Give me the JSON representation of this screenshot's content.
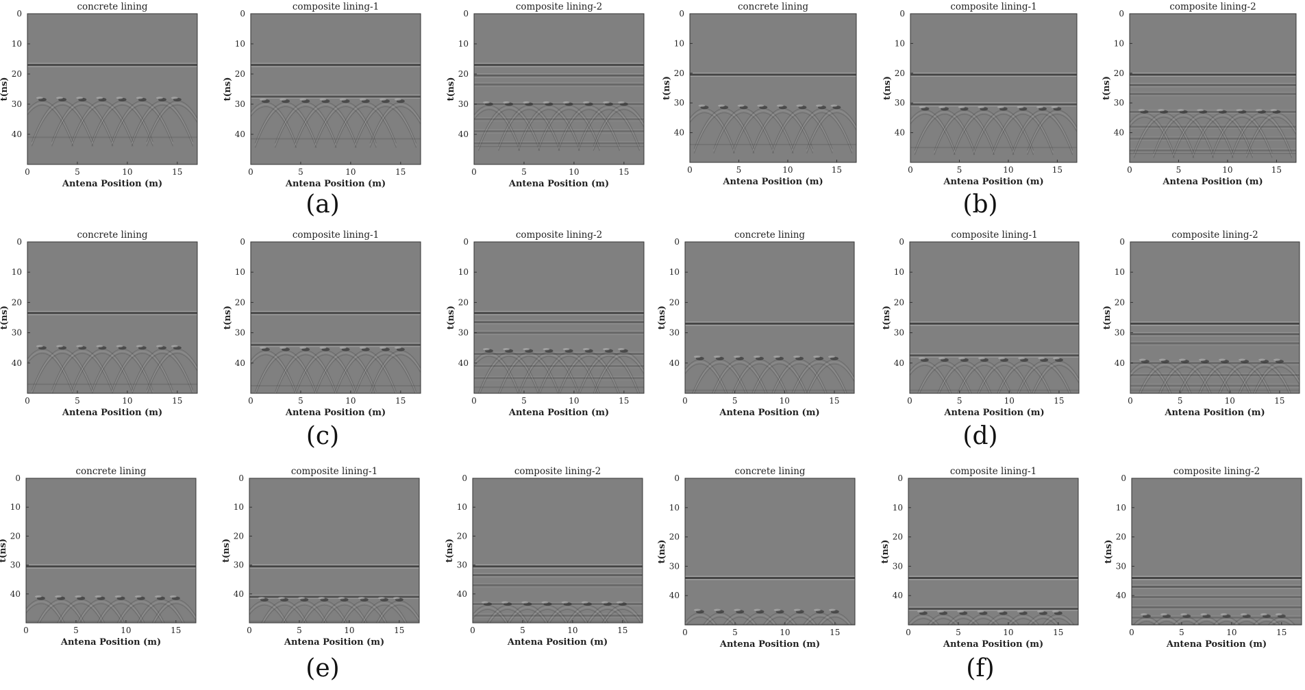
{
  "chart_data": [
    {
      "group": "a",
      "index": 0,
      "type": "heatmap",
      "title": "concrete lining",
      "xlabel": "Antena Position (m)",
      "ylabel": "t(ns)",
      "xlim": [
        0,
        17
      ],
      "ylim": [
        50,
        0
      ],
      "xticks": [
        0,
        5,
        10,
        15
      ],
      "yticks": [
        0,
        10,
        20,
        30,
        40
      ],
      "reflections": [
        {
          "t": 17,
          "strength": 1.0
        }
      ],
      "hyperbola_t": 28.5,
      "hyperbola_x": [
        1.5,
        3.5,
        5.5,
        7.5,
        9.5,
        11.5,
        13.5,
        15.0
      ],
      "secondary_t": 41
    },
    {
      "group": "a",
      "index": 1,
      "type": "heatmap",
      "title": "composite lining-1",
      "xlabel": "Antena Position (m)",
      "ylabel": "t(ns)",
      "xlim": [
        0,
        17
      ],
      "ylim": [
        50,
        0
      ],
      "xticks": [
        0,
        5,
        10,
        15
      ],
      "yticks": [
        0,
        10,
        20,
        30,
        40
      ],
      "reflections": [
        {
          "t": 17,
          "strength": 1.0
        },
        {
          "t": 27.5,
          "strength": 0.8
        }
      ],
      "hyperbola_t": 29,
      "hyperbola_x": [
        1.5,
        3.5,
        5.5,
        7.5,
        9.5,
        11.5,
        13.5,
        15.0
      ],
      "secondary_t": 41.5
    },
    {
      "group": "a",
      "index": 2,
      "type": "heatmap",
      "title": "composite lining-2",
      "xlabel": "Antena Position (m)",
      "ylabel": "t(ns)",
      "xlim": [
        0,
        17
      ],
      "ylim": [
        50,
        0
      ],
      "xticks": [
        0,
        5,
        10,
        15
      ],
      "yticks": [
        0,
        10,
        20,
        30,
        40
      ],
      "reflections": [
        {
          "t": 17,
          "strength": 1.0
        },
        {
          "t": 20.5,
          "strength": 0.6
        },
        {
          "t": 23.5,
          "strength": 0.4
        },
        {
          "t": 30,
          "strength": 0.4
        },
        {
          "t": 35,
          "strength": 0.3
        },
        {
          "t": 39,
          "strength": 0.3
        },
        {
          "t": 43,
          "strength": 0.3
        }
      ],
      "hyperbola_t": 30,
      "hyperbola_x": [
        1.5,
        3.5,
        5.5,
        7.5,
        9.5,
        11.5,
        13.5,
        15.0
      ],
      "secondary_t": 44
    },
    {
      "group": "b",
      "index": 0,
      "type": "heatmap",
      "title": "concrete lining",
      "xlabel": "Antena Position (m)",
      "ylabel": "t(ns)",
      "xlim": [
        0,
        17
      ],
      "ylim": [
        50,
        0
      ],
      "xticks": [
        0,
        5,
        10,
        15
      ],
      "yticks": [
        0,
        10,
        20,
        30,
        40
      ],
      "reflections": [
        {
          "t": 20.5,
          "strength": 1.0
        }
      ],
      "hyperbola_t": 31.5,
      "hyperbola_x": [
        1.5,
        3.5,
        5.5,
        7.5,
        9.5,
        11.5,
        13.5,
        15.0
      ],
      "secondary_t": 44
    },
    {
      "group": "b",
      "index": 1,
      "type": "heatmap",
      "title": "composite lining-1",
      "xlabel": "Antena Position (m)",
      "ylabel": "t(ns)",
      "xlim": [
        0,
        17
      ],
      "ylim": [
        50,
        0
      ],
      "xticks": [
        0,
        5,
        10,
        15
      ],
      "yticks": [
        0,
        10,
        20,
        30,
        40
      ],
      "reflections": [
        {
          "t": 20.5,
          "strength": 1.0
        },
        {
          "t": 30.5,
          "strength": 0.8
        }
      ],
      "hyperbola_t": 32,
      "hyperbola_x": [
        1.5,
        3.5,
        5.5,
        7.5,
        9.5,
        11.5,
        13.5,
        15.0
      ],
      "secondary_t": 45
    },
    {
      "group": "b",
      "index": 2,
      "type": "heatmap",
      "title": "composite lining-2",
      "xlabel": "Antena Position (m)",
      "ylabel": "t(ns)",
      "xlim": [
        0,
        17
      ],
      "ylim": [
        50,
        0
      ],
      "xticks": [
        0,
        5,
        10,
        15
      ],
      "yticks": [
        0,
        10,
        20,
        30,
        40
      ],
      "reflections": [
        {
          "t": 20.5,
          "strength": 1.0
        },
        {
          "t": 24,
          "strength": 0.6
        },
        {
          "t": 27,
          "strength": 0.4
        },
        {
          "t": 33,
          "strength": 0.4
        },
        {
          "t": 38,
          "strength": 0.3
        },
        {
          "t": 42,
          "strength": 0.3
        },
        {
          "t": 46,
          "strength": 0.3
        }
      ],
      "hyperbola_t": 33,
      "hyperbola_x": [
        1.5,
        3.5,
        5.5,
        7.5,
        9.5,
        11.5,
        13.5,
        15.0
      ],
      "secondary_t": 47
    },
    {
      "group": "c",
      "index": 0,
      "type": "heatmap",
      "title": "concrete lining",
      "xlabel": "Antena Position (m)",
      "ylabel": "t(ns)",
      "xlim": [
        0,
        17
      ],
      "ylim": [
        50,
        0
      ],
      "xticks": [
        0,
        5,
        10,
        15
      ],
      "yticks": [
        0,
        10,
        20,
        30,
        40
      ],
      "reflections": [
        {
          "t": 23.5,
          "strength": 1.0
        }
      ],
      "hyperbola_t": 35,
      "hyperbola_x": [
        1.5,
        3.5,
        5.5,
        7.5,
        9.5,
        11.5,
        13.5,
        15.0
      ],
      "secondary_t": 47
    },
    {
      "group": "c",
      "index": 1,
      "type": "heatmap",
      "title": "composite lining-1",
      "xlabel": "Antena Position (m)",
      "ylabel": "t(ns)",
      "xlim": [
        0,
        17
      ],
      "ylim": [
        50,
        0
      ],
      "xticks": [
        0,
        5,
        10,
        15
      ],
      "yticks": [
        0,
        10,
        20,
        30,
        40
      ],
      "reflections": [
        {
          "t": 23.5,
          "strength": 1.0
        },
        {
          "t": 34,
          "strength": 0.8
        }
      ],
      "hyperbola_t": 35.5,
      "hyperbola_x": [
        1.5,
        3.5,
        5.5,
        7.5,
        9.5,
        11.5,
        13.5,
        15.0
      ],
      "secondary_t": 47.5
    },
    {
      "group": "c",
      "index": 2,
      "type": "heatmap",
      "title": "composite lining-2",
      "xlabel": "Antena Position (m)",
      "ylabel": "t(ns)",
      "xlim": [
        0,
        17
      ],
      "ylim": [
        50,
        0
      ],
      "xticks": [
        0,
        5,
        10,
        15
      ],
      "yticks": [
        0,
        10,
        20,
        30,
        40
      ],
      "reflections": [
        {
          "t": 23.5,
          "strength": 1.0
        },
        {
          "t": 26.5,
          "strength": 0.6
        },
        {
          "t": 30,
          "strength": 0.4
        },
        {
          "t": 37,
          "strength": 0.4
        },
        {
          "t": 41,
          "strength": 0.3
        },
        {
          "t": 45,
          "strength": 0.3
        }
      ],
      "hyperbola_t": 36,
      "hyperbola_x": [
        1.5,
        3.5,
        5.5,
        7.5,
        9.5,
        11.5,
        13.5,
        15.0
      ],
      "secondary_t": 48
    },
    {
      "group": "d",
      "index": 0,
      "type": "heatmap",
      "title": "concrete lining",
      "xlabel": "Antena Position (m)",
      "ylabel": "t(ns)",
      "xlim": [
        0,
        17
      ],
      "ylim": [
        50,
        0
      ],
      "xticks": [
        0,
        5,
        10,
        15
      ],
      "yticks": [
        0,
        10,
        20,
        30,
        40
      ],
      "reflections": [
        {
          "t": 27,
          "strength": 1.0
        }
      ],
      "hyperbola_t": 38.5,
      "hyperbola_x": [
        1.5,
        3.5,
        5.5,
        7.5,
        9.5,
        11.5,
        13.5,
        15.0
      ],
      "secondary_t": 49
    },
    {
      "group": "d",
      "index": 1,
      "type": "heatmap",
      "title": "composite lining-1",
      "xlabel": "Antena Position (m)",
      "ylabel": "t(ns)",
      "xlim": [
        0,
        17
      ],
      "ylim": [
        50,
        0
      ],
      "xticks": [
        0,
        5,
        10,
        15
      ],
      "yticks": [
        0,
        10,
        20,
        30,
        40
      ],
      "reflections": [
        {
          "t": 27,
          "strength": 1.0
        },
        {
          "t": 37.5,
          "strength": 0.8
        }
      ],
      "hyperbola_t": 39,
      "hyperbola_x": [
        1.5,
        3.5,
        5.5,
        7.5,
        9.5,
        11.5,
        13.5,
        15.0
      ],
      "secondary_t": 49
    },
    {
      "group": "d",
      "index": 2,
      "type": "heatmap",
      "title": "composite lining-2",
      "xlabel": "Antena Position (m)",
      "ylabel": "t(ns)",
      "xlim": [
        0,
        17
      ],
      "ylim": [
        50,
        0
      ],
      "xticks": [
        0,
        5,
        10,
        15
      ],
      "yticks": [
        0,
        10,
        20,
        30,
        40
      ],
      "reflections": [
        {
          "t": 27,
          "strength": 1.0
        },
        {
          "t": 30.5,
          "strength": 0.6
        },
        {
          "t": 33.5,
          "strength": 0.4
        },
        {
          "t": 40,
          "strength": 0.4
        },
        {
          "t": 44,
          "strength": 0.3
        },
        {
          "t": 47.5,
          "strength": 0.3
        }
      ],
      "hyperbola_t": 39.5,
      "hyperbola_x": [
        1.5,
        3.5,
        5.5,
        7.5,
        9.5,
        11.5,
        13.5,
        15.0
      ],
      "secondary_t": 49
    },
    {
      "group": "e",
      "index": 0,
      "type": "heatmap",
      "title": "concrete lining",
      "xlabel": "Antena Position (m)",
      "ylabel": "t(ns)",
      "xlim": [
        0,
        17
      ],
      "ylim": [
        50,
        0
      ],
      "xticks": [
        0,
        5,
        10,
        15
      ],
      "yticks": [
        0,
        10,
        20,
        30,
        40
      ],
      "reflections": [
        {
          "t": 30.5,
          "strength": 1.0
        }
      ],
      "hyperbola_t": 41.5,
      "hyperbola_x": [
        1.5,
        3.5,
        5.5,
        7.5,
        9.5,
        11.5,
        13.5,
        15.0
      ],
      "secondary_t": 49.5
    },
    {
      "group": "e",
      "index": 1,
      "type": "heatmap",
      "title": "composite lining-1",
      "xlabel": "Antena Position (m)",
      "ylabel": "t(ns)",
      "xlim": [
        0,
        17
      ],
      "ylim": [
        50,
        0
      ],
      "xticks": [
        0,
        5,
        10,
        15
      ],
      "yticks": [
        0,
        10,
        20,
        30,
        40
      ],
      "reflections": [
        {
          "t": 30.5,
          "strength": 1.0
        },
        {
          "t": 41,
          "strength": 0.8
        }
      ],
      "hyperbola_t": 42,
      "hyperbola_x": [
        1.5,
        3.5,
        5.5,
        7.5,
        9.5,
        11.5,
        13.5,
        15.0
      ],
      "secondary_t": 49.5
    },
    {
      "group": "e",
      "index": 2,
      "type": "heatmap",
      "title": "composite lining-2",
      "xlabel": "Antena Position (m)",
      "ylabel": "t(ns)",
      "xlim": [
        0,
        17
      ],
      "ylim": [
        50,
        0
      ],
      "xticks": [
        0,
        5,
        10,
        15
      ],
      "yticks": [
        0,
        10,
        20,
        30,
        40
      ],
      "reflections": [
        {
          "t": 30.5,
          "strength": 1.0
        },
        {
          "t": 33.5,
          "strength": 0.6
        },
        {
          "t": 37,
          "strength": 0.4
        },
        {
          "t": 43.5,
          "strength": 0.4
        },
        {
          "t": 47.5,
          "strength": 0.3
        }
      ],
      "hyperbola_t": 43.5,
      "hyperbola_x": [
        1.5,
        3.5,
        5.5,
        7.5,
        9.5,
        11.5,
        13.5,
        15.0
      ],
      "secondary_t": 49.5
    },
    {
      "group": "f",
      "index": 0,
      "type": "heatmap",
      "title": "concrete lining",
      "xlabel": "Antena Position (m)",
      "ylabel": "t(ns)",
      "xlim": [
        0,
        17
      ],
      "ylim": [
        50,
        0
      ],
      "xticks": [
        0,
        5,
        10,
        15
      ],
      "yticks": [
        0,
        10,
        20,
        30,
        40
      ],
      "reflections": [
        {
          "t": 34,
          "strength": 1.0
        }
      ],
      "hyperbola_t": 45.5,
      "hyperbola_x": [
        1.5,
        3.5,
        5.5,
        7.5,
        9.5,
        11.5,
        13.5,
        15.0
      ],
      "secondary_t": 49.8
    },
    {
      "group": "f",
      "index": 1,
      "type": "heatmap",
      "title": "composite lining-1",
      "xlabel": "Antena Position (m)",
      "ylabel": "t(ns)",
      "xlim": [
        0,
        17
      ],
      "ylim": [
        50,
        0
      ],
      "xticks": [
        0,
        5,
        10,
        15
      ],
      "yticks": [
        0,
        10,
        20,
        30,
        40
      ],
      "reflections": [
        {
          "t": 34,
          "strength": 1.0
        },
        {
          "t": 44.5,
          "strength": 0.8
        }
      ],
      "hyperbola_t": 46,
      "hyperbola_x": [
        1.5,
        3.5,
        5.5,
        7.5,
        9.5,
        11.5,
        13.5,
        15.0
      ],
      "secondary_t": 49.8
    },
    {
      "group": "f",
      "index": 2,
      "type": "heatmap",
      "title": "composite lining-2",
      "xlabel": "Antena Position (m)",
      "ylabel": "t(ns)",
      "xlim": [
        0,
        17
      ],
      "ylim": [
        50,
        0
      ],
      "xticks": [
        0,
        5,
        10,
        15
      ],
      "yticks": [
        0,
        10,
        20,
        30,
        40
      ],
      "reflections": [
        {
          "t": 34,
          "strength": 1.0
        },
        {
          "t": 37,
          "strength": 0.6
        },
        {
          "t": 40.5,
          "strength": 0.4
        },
        {
          "t": 44,
          "strength": 0.4
        },
        {
          "t": 47.5,
          "strength": 0.3
        }
      ],
      "hyperbola_t": 47,
      "hyperbola_x": [
        1.5,
        3.5,
        5.5,
        7.5,
        9.5,
        11.5,
        13.5,
        15.0
      ],
      "secondary_t": 49.8
    }
  ],
  "captions": [
    "(a)",
    "(b)",
    "(c)",
    "(d)",
    "(e)",
    "(f)"
  ],
  "colors": {
    "background": "#808080",
    "dark_band": "#3a3a3a",
    "light_band": "#b8b8b8",
    "axis": "#333333"
  }
}
